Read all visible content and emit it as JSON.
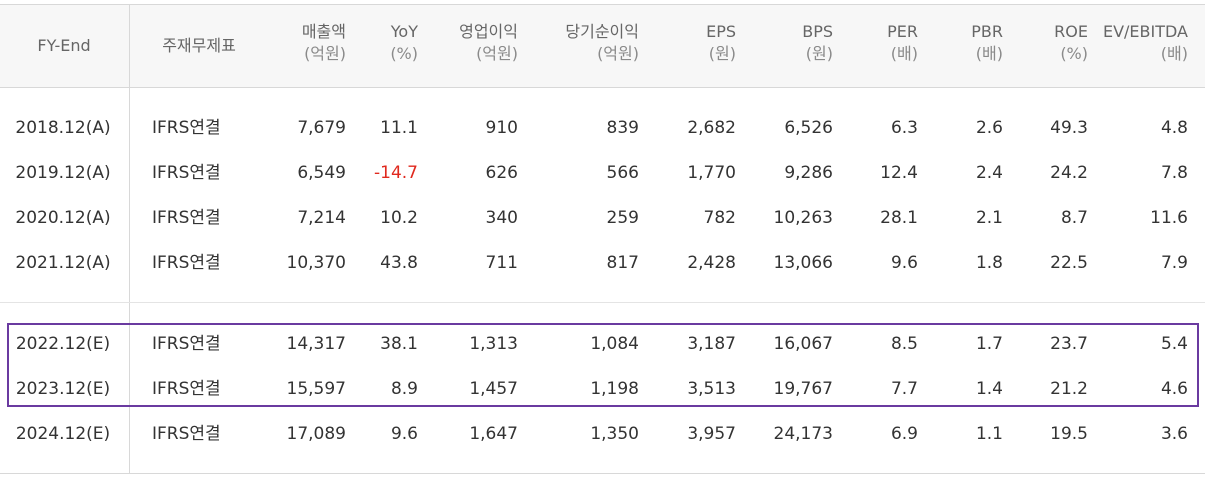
{
  "header": {
    "fy_end": "FY-End",
    "statement": "주재무제표",
    "columns": [
      {
        "key": "sales",
        "label": "매출액",
        "unit": "(억원)"
      },
      {
        "key": "yoy",
        "label": "YoY",
        "unit": "(%)"
      },
      {
        "key": "op_income",
        "label": "영업이익",
        "unit": "(억원)"
      },
      {
        "key": "net_income",
        "label": "당기순이익",
        "unit": "(억원)"
      },
      {
        "key": "eps",
        "label": "EPS",
        "unit": "(원)"
      },
      {
        "key": "bps",
        "label": "BPS",
        "unit": "(원)"
      },
      {
        "key": "per",
        "label": "PER",
        "unit": "(배)"
      },
      {
        "key": "pbr",
        "label": "PBR",
        "unit": "(배)"
      },
      {
        "key": "roe",
        "label": "ROE",
        "unit": "(%)"
      },
      {
        "key": "ev_ebitda",
        "label": "EV/EBITDA",
        "unit": "(배)"
      }
    ]
  },
  "rows": [
    {
      "fy": "2018.12(A)",
      "statement": "IFRS연결",
      "values": [
        "7,679",
        "11.1",
        "910",
        "839",
        "2,682",
        "6,526",
        "6.3",
        "2.6",
        "49.3",
        "4.8"
      ]
    },
    {
      "fy": "2019.12(A)",
      "statement": "IFRS연결",
      "values": [
        "6,549",
        "-14.7",
        "626",
        "566",
        "1,770",
        "9,286",
        "12.4",
        "2.4",
        "24.2",
        "7.8"
      ]
    },
    {
      "fy": "2020.12(A)",
      "statement": "IFRS연결",
      "values": [
        "7,214",
        "10.2",
        "340",
        "259",
        "782",
        "10,263",
        "28.1",
        "2.1",
        "8.7",
        "11.6"
      ]
    },
    {
      "fy": "2021.12(A)",
      "statement": "IFRS연결",
      "values": [
        "10,370",
        "43.8",
        "711",
        "817",
        "2,428",
        "13,066",
        "9.6",
        "1.8",
        "22.5",
        "7.9"
      ]
    },
    {
      "fy": "2022.12(E)",
      "statement": "IFRS연결",
      "values": [
        "14,317",
        "38.1",
        "1,313",
        "1,084",
        "3,187",
        "16,067",
        "8.5",
        "1.7",
        "23.7",
        "5.4"
      ]
    },
    {
      "fy": "2023.12(E)",
      "statement": "IFRS연결",
      "values": [
        "15,597",
        "8.9",
        "1,457",
        "1,198",
        "3,513",
        "19,767",
        "7.7",
        "1.4",
        "21.2",
        "4.6"
      ]
    },
    {
      "fy": "2024.12(E)",
      "statement": "IFRS연결",
      "values": [
        "17,089",
        "9.6",
        "1,647",
        "1,350",
        "3,957",
        "24,173",
        "6.9",
        "1.1",
        "19.5",
        "3.6"
      ]
    }
  ],
  "colors": {
    "negative": "#e0291e",
    "highlight_border": "#6a3aa0",
    "header_bg": "#f7f7f7"
  }
}
